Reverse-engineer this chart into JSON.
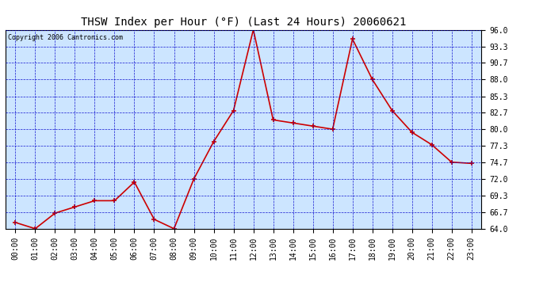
{
  "title": "THSW Index per Hour (°F) (Last 24 Hours) 20060621",
  "copyright": "Copyright 2006 Cantronics.com",
  "hours": [
    "00:00",
    "01:00",
    "02:00",
    "03:00",
    "04:00",
    "05:00",
    "06:00",
    "07:00",
    "08:00",
    "09:00",
    "10:00",
    "11:00",
    "12:00",
    "13:00",
    "14:00",
    "15:00",
    "16:00",
    "17:00",
    "18:00",
    "19:00",
    "20:00",
    "21:00",
    "22:00",
    "23:00"
  ],
  "values": [
    65.0,
    64.0,
    66.5,
    67.5,
    68.5,
    68.5,
    71.5,
    65.5,
    64.0,
    72.0,
    78.0,
    83.0,
    96.0,
    81.5,
    81.0,
    80.5,
    80.0,
    94.5,
    88.0,
    83.0,
    79.5,
    77.5,
    74.7,
    74.5
  ],
  "line_color": "#cc0000",
  "marker_color": "#cc0000",
  "bg_color": "#cce5ff",
  "grid_color": "#0000cc",
  "fig_bg": "#ffffff",
  "ylim": [
    64.0,
    96.0
  ],
  "yticks": [
    64.0,
    66.7,
    69.3,
    72.0,
    74.7,
    77.3,
    80.0,
    82.7,
    85.3,
    88.0,
    90.7,
    93.3,
    96.0
  ],
  "ytick_labels": [
    "64.0",
    "66.7",
    "69.3",
    "72.0",
    "74.7",
    "77.3",
    "80.0",
    "82.7",
    "85.3",
    "88.0",
    "90.7",
    "93.3",
    "96.0"
  ],
  "title_fontsize": 10,
  "copyright_fontsize": 6,
  "tick_fontsize": 7,
  "figwidth": 6.9,
  "figheight": 3.75,
  "dpi": 100
}
